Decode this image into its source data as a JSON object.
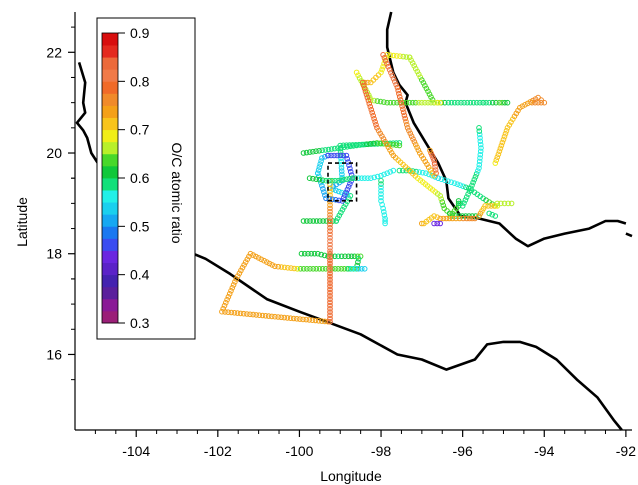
{
  "chart_data": {
    "type": "scatter",
    "title": "",
    "xlabel": "Longitude",
    "ylabel": "Latitude",
    "xlim": [
      -105.5,
      -91.85
    ],
    "ylim": [
      14.5,
      22.8
    ],
    "x_ticks": [
      {
        "value": -104,
        "label": "-104"
      },
      {
        "value": -102,
        "label": "-102"
      },
      {
        "value": -100,
        "label": "-100"
      },
      {
        "value": -98,
        "label": "-98"
      },
      {
        "value": -96,
        "label": "-96"
      },
      {
        "value": -94,
        "label": "-94"
      },
      {
        "value": -92,
        "label": "-92"
      }
    ],
    "y_ticks": [
      {
        "value": 16,
        "label": "16"
      },
      {
        "value": 18,
        "label": "18"
      },
      {
        "value": 20,
        "label": "20"
      },
      {
        "value": 22,
        "label": "22"
      }
    ],
    "grid": false,
    "colorbar": {
      "label": "O/C atomic ratio",
      "range": [
        0.3,
        0.9
      ],
      "ticks": [
        {
          "value": 0.9,
          "label": "0.9"
        },
        {
          "value": 0.8,
          "label": "0.8"
        },
        {
          "value": 0.7,
          "label": "0.7"
        },
        {
          "value": 0.6,
          "label": "0.6"
        },
        {
          "value": 0.5,
          "label": "0.5"
        },
        {
          "value": 0.4,
          "label": "0.4"
        },
        {
          "value": 0.3,
          "label": "0.3"
        }
      ],
      "bands": [
        {
          "from": 0.3,
          "to": 0.325,
          "color": "#9b1f78"
        },
        {
          "from": 0.325,
          "to": 0.35,
          "color": "#8a1a96"
        },
        {
          "from": 0.35,
          "to": 0.375,
          "color": "#5a1f9c"
        },
        {
          "from": 0.375,
          "to": 0.4,
          "color": "#4422b0"
        },
        {
          "from": 0.4,
          "to": 0.425,
          "color": "#5b22c8"
        },
        {
          "from": 0.425,
          "to": 0.45,
          "color": "#6a26e0"
        },
        {
          "from": 0.45,
          "to": 0.475,
          "color": "#3a4cf0"
        },
        {
          "from": 0.475,
          "to": 0.5,
          "color": "#1a78f0"
        },
        {
          "from": 0.5,
          "to": 0.525,
          "color": "#16a8f2"
        },
        {
          "from": 0.525,
          "to": 0.55,
          "color": "#1ad0ee"
        },
        {
          "from": 0.55,
          "to": 0.575,
          "color": "#22f0e8"
        },
        {
          "from": 0.575,
          "to": 0.6,
          "color": "#12e07a"
        },
        {
          "from": 0.6,
          "to": 0.625,
          "color": "#10c83a"
        },
        {
          "from": 0.625,
          "to": 0.65,
          "color": "#48d82a"
        },
        {
          "from": 0.65,
          "to": 0.675,
          "color": "#b8f02a"
        },
        {
          "from": 0.675,
          "to": 0.7,
          "color": "#f0ee18"
        },
        {
          "from": 0.7,
          "to": 0.725,
          "color": "#f8c41c"
        },
        {
          "from": 0.725,
          "to": 0.75,
          "color": "#f4a018"
        },
        {
          "from": 0.75,
          "to": 0.775,
          "color": "#f08a2a"
        },
        {
          "from": 0.775,
          "to": 0.8,
          "color": "#f06a28"
        },
        {
          "from": 0.8,
          "to": 0.825,
          "color": "#f07a48"
        },
        {
          "from": 0.825,
          "to": 0.85,
          "color": "#ec6a3a"
        },
        {
          "from": 0.85,
          "to": 0.875,
          "color": "#e42a1e"
        },
        {
          "from": 0.875,
          "to": 0.9,
          "color": "#d80e0e"
        }
      ]
    },
    "highlight_box": {
      "lon": [
        -99.3,
        -98.6
      ],
      "lat": [
        19.05,
        19.8
      ]
    },
    "coastline": [
      [
        [
          -105.4,
          21.8
        ],
        [
          -105.25,
          21.4
        ],
        [
          -105.3,
          21.0
        ],
        [
          -105.25,
          20.8
        ],
        [
          -105.45,
          20.6
        ],
        [
          -105.3,
          20.45
        ],
        [
          -105.2,
          20.3
        ],
        [
          -105.1,
          20.0
        ],
        [
          -104.7,
          19.5
        ],
        [
          -104.3,
          19.1
        ],
        [
          -103.7,
          18.6
        ],
        [
          -103.2,
          18.2
        ],
        [
          -102.3,
          17.9
        ],
        [
          -101.7,
          17.6
        ],
        [
          -100.8,
          17.1
        ],
        [
          -100.0,
          16.85
        ],
        [
          -99.5,
          16.7
        ],
        [
          -98.5,
          16.4
        ],
        [
          -97.6,
          16.0
        ],
        [
          -97.0,
          15.9
        ],
        [
          -96.4,
          15.7
        ],
        [
          -95.7,
          15.9
        ],
        [
          -95.4,
          16.2
        ],
        [
          -95.0,
          16.25
        ],
        [
          -94.6,
          16.25
        ],
        [
          -94.2,
          16.15
        ],
        [
          -93.7,
          15.9
        ],
        [
          -93.2,
          15.5
        ],
        [
          -92.7,
          15.15
        ],
        [
          -92.3,
          14.7
        ],
        [
          -92.1,
          14.5
        ]
      ],
      [
        [
          -97.75,
          22.8
        ],
        [
          -97.85,
          22.45
        ],
        [
          -97.85,
          22.1
        ],
        [
          -97.7,
          21.6
        ],
        [
          -97.55,
          21.35
        ],
        [
          -97.35,
          21.15
        ],
        [
          -97.4,
          21.0
        ],
        [
          -97.2,
          20.6
        ],
        [
          -96.9,
          20.2
        ],
        [
          -96.6,
          19.8
        ],
        [
          -96.4,
          19.45
        ],
        [
          -96.35,
          19.1
        ],
        [
          -96.05,
          18.75
        ],
        [
          -95.6,
          18.7
        ],
        [
          -95.1,
          18.6
        ],
        [
          -94.7,
          18.3
        ],
        [
          -94.4,
          18.15
        ],
        [
          -94.0,
          18.3
        ],
        [
          -93.5,
          18.4
        ],
        [
          -92.9,
          18.5
        ],
        [
          -92.5,
          18.65
        ],
        [
          -92.2,
          18.65
        ],
        [
          -92.0,
          18.6
        ]
      ],
      [
        [
          -91.85,
          18.35
        ],
        [
          -92.0,
          18.4
        ]
      ]
    ],
    "tracks": [
      {
        "values": [
          0.62,
          0.62,
          0.6,
          0.58,
          0.52,
          0.52,
          0.6,
          0.6,
          0.63,
          0.63,
          0.58,
          0.61
        ],
        "points": [
          [
            -99.9,
            18.65
          ],
          [
            -99.1,
            18.65
          ],
          [
            -99.1,
            18.65
          ],
          [
            -98.75,
            19.15
          ],
          [
            -99.25,
            19.3
          ],
          [
            -98.95,
            19.45
          ],
          [
            -99.0,
            20.15
          ],
          [
            -97.55,
            20.2
          ],
          [
            -97.55,
            20.15
          ],
          [
            -98.1,
            20.2
          ],
          [
            -98.6,
            20.15
          ],
          [
            -99.9,
            20.0
          ]
        ]
      },
      {
        "values": [
          0.6,
          0.58,
          0.58,
          0.57,
          0.55,
          0.56,
          0.58,
          0.6,
          0.66
        ],
        "points": [
          [
            -97.55,
            19.65
          ],
          [
            -97.3,
            19.65
          ],
          [
            -97.3,
            19.65
          ],
          [
            -96.9,
            19.6
          ],
          [
            -96.6,
            19.5
          ],
          [
            -96.2,
            19.4
          ],
          [
            -95.85,
            19.3
          ],
          [
            -95.5,
            19.1
          ],
          [
            -95.2,
            18.95
          ]
        ]
      },
      {
        "values": [
          0.77,
          0.71,
          0.7,
          0.7,
          0.7,
          0.66,
          0.66,
          0.64,
          0.6,
          0.58,
          0.58,
          0.6,
          0.63,
          0.62
        ],
        "points": [
          [
            -98.4,
            21.4
          ],
          [
            -98.25,
            21.4
          ],
          [
            -98.0,
            21.6
          ],
          [
            -97.85,
            21.95
          ],
          [
            -97.85,
            21.95
          ],
          [
            -97.3,
            21.9
          ],
          [
            -97.3,
            21.9
          ],
          [
            -96.7,
            21.0
          ],
          [
            -96.35,
            21.0
          ],
          [
            -95.5,
            21.0
          ],
          [
            -95.5,
            21.0
          ],
          [
            -95.35,
            21.0
          ],
          [
            -95.1,
            21.0
          ],
          [
            -94.9,
            21.0
          ]
        ]
      },
      {
        "values": [
          0.76,
          0.76,
          0.76,
          0.73,
          0.72,
          0.7
        ],
        "points": [
          [
            -94.3,
            21.0
          ],
          [
            -94.0,
            21.0
          ],
          [
            -94.15,
            21.1
          ],
          [
            -94.6,
            20.9
          ],
          [
            -94.9,
            20.5
          ],
          [
            -95.2,
            19.8
          ]
        ]
      },
      {
        "values": [
          0.68,
          0.66,
          0.66,
          0.63,
          0.63,
          0.67,
          0.68
        ],
        "points": [
          [
            -98.6,
            21.6
          ],
          [
            -98.3,
            21.15
          ],
          [
            -98.25,
            21.05
          ],
          [
            -97.85,
            21.0
          ],
          [
            -97.45,
            21.0
          ],
          [
            -96.85,
            21.0
          ],
          [
            -96.55,
            21.0
          ]
        ]
      },
      {
        "values": [
          0.62,
          0.62,
          0.62,
          0.6,
          0.62,
          0.63,
          0.6,
          0.63,
          0.65,
          0.65
        ],
        "points": [
          [
            -99.95,
            18.0
          ],
          [
            -99.55,
            18.0
          ],
          [
            -99.3,
            17.95
          ],
          [
            -99.05,
            17.95
          ],
          [
            -98.8,
            17.95
          ],
          [
            -98.5,
            17.95
          ],
          [
            -98.55,
            17.9
          ],
          [
            -98.6,
            17.7
          ],
          [
            -99.2,
            17.7
          ],
          [
            -100.05,
            17.7
          ]
        ]
      },
      {
        "values": [
          0.7,
          0.73,
          0.73,
          0.74,
          0.74,
          0.75,
          0.75
        ],
        "points": [
          [
            -100.05,
            17.7
          ],
          [
            -100.6,
            17.75
          ],
          [
            -101.2,
            18.0
          ],
          [
            -101.55,
            17.5
          ],
          [
            -101.9,
            16.85
          ],
          [
            -100.6,
            16.75
          ],
          [
            -99.3,
            16.65
          ]
        ]
      },
      {
        "values": [
          0.8,
          0.8,
          0.82,
          0.82,
          0.8,
          0.76,
          0.72,
          0.71,
          0.72
        ],
        "points": [
          [
            -99.25,
            18.0
          ],
          [
            -99.25,
            16.65
          ],
          [
            -99.25,
            16.65
          ],
          [
            -99.25,
            18.05
          ],
          [
            -99.25,
            18.45
          ],
          [
            -99.25,
            18.9
          ],
          [
            -99.25,
            19.1
          ],
          [
            -99.25,
            19.3
          ],
          [
            -99.25,
            19.45
          ]
        ]
      },
      {
        "values": [
          0.55,
          0.53,
          0.5,
          0.46,
          0.46,
          0.45,
          0.46,
          0.5,
          0.55
        ],
        "points": [
          [
            -99.55,
            19.6
          ],
          [
            -99.45,
            19.9
          ],
          [
            -99.3,
            19.95
          ],
          [
            -99.3,
            19.95
          ],
          [
            -98.85,
            19.95
          ],
          [
            -98.7,
            19.5
          ],
          [
            -98.95,
            19.05
          ],
          [
            -99.35,
            19.1
          ],
          [
            -99.55,
            19.6
          ]
        ]
      },
      {
        "values": [
          0.8,
          0.78,
          0.73,
          0.7,
          0.67,
          0.63,
          0.62,
          0.6
        ],
        "points": [
          [
            -98.45,
            21.4
          ],
          [
            -98.1,
            20.5
          ],
          [
            -97.7,
            19.95
          ],
          [
            -97.1,
            19.5
          ],
          [
            -96.55,
            19.15
          ],
          [
            -96.45,
            18.9
          ],
          [
            -96.25,
            18.75
          ],
          [
            -95.6,
            18.75
          ]
        ]
      },
      {
        "values": [
          0.73,
          0.72,
          0.7,
          0.67,
          0.66
        ],
        "points": [
          [
            -95.6,
            18.75
          ],
          [
            -95.45,
            18.95
          ],
          [
            -95.15,
            18.95
          ],
          [
            -95.15,
            19.0
          ],
          [
            -94.8,
            19.0
          ]
        ]
      },
      {
        "values": [
          0.84,
          0.8,
          0.77,
          0.74,
          0.72
        ],
        "points": [
          [
            -97.95,
            21.95
          ],
          [
            -97.6,
            21.3
          ],
          [
            -97.35,
            20.5
          ],
          [
            -97.05,
            20.0
          ],
          [
            -96.7,
            19.55
          ]
        ]
      },
      {
        "values": [
          0.65,
          0.62,
          0.62,
          0.58,
          0.6,
          0.57,
          0.56,
          0.58
        ],
        "points": [
          [
            -96.3,
            18.75
          ],
          [
            -96.1,
            18.95
          ],
          [
            -96.1,
            19.05
          ],
          [
            -96.0,
            18.95
          ],
          [
            -95.8,
            19.3
          ],
          [
            -95.6,
            19.7
          ],
          [
            -95.55,
            20.1
          ],
          [
            -95.6,
            20.5
          ]
        ]
      },
      {
        "values": [
          0.58,
          0.56,
          0.56,
          0.56,
          0.56
        ],
        "points": [
          [
            -98.0,
            19.45
          ],
          [
            -98.0,
            19.05
          ],
          [
            -97.95,
            18.9
          ],
          [
            -97.9,
            18.7
          ],
          [
            -97.9,
            18.6
          ]
        ]
      },
      {
        "values": [
          0.8,
          0.84,
          0.84,
          0.74
        ],
        "points": [
          [
            -96.65,
            19.6
          ],
          [
            -96.7,
            19.85
          ],
          [
            -96.75,
            19.95
          ],
          [
            -96.8,
            20.05
          ]
        ]
      },
      {
        "values": [
          0.62,
          0.6,
          0.6,
          0.58,
          0.56,
          0.56,
          0.56
        ],
        "points": [
          [
            -99.75,
            19.5
          ],
          [
            -99.35,
            19.45
          ],
          [
            -99.05,
            19.45
          ],
          [
            -98.7,
            19.5
          ],
          [
            -98.25,
            19.5
          ],
          [
            -98.0,
            19.55
          ],
          [
            -97.7,
            19.65
          ]
        ]
      },
      {
        "values": [
          0.73,
          0.71,
          0.71,
          0.73,
          0.73,
          0.76,
          0.76
        ],
        "points": [
          [
            -97.0,
            18.6
          ],
          [
            -96.95,
            18.6
          ],
          [
            -96.7,
            18.75
          ],
          [
            -96.55,
            18.7
          ],
          [
            -96.25,
            18.7
          ],
          [
            -95.9,
            18.7
          ],
          [
            -95.7,
            18.7
          ]
        ]
      },
      {
        "values": [
          0.45,
          0.45
        ],
        "points": [
          [
            -96.7,
            18.6
          ],
          [
            -96.55,
            18.6
          ]
        ]
      },
      {
        "values": [
          0.59,
          0.59
        ],
        "points": [
          [
            -95.35,
            18.8
          ],
          [
            -95.2,
            18.75
          ]
        ]
      },
      {
        "values": [
          0.58,
          0.55,
          0.55
        ],
        "points": [
          [
            -98.8,
            17.7
          ],
          [
            -98.55,
            17.7
          ],
          [
            -98.4,
            17.7
          ]
        ]
      }
    ]
  }
}
